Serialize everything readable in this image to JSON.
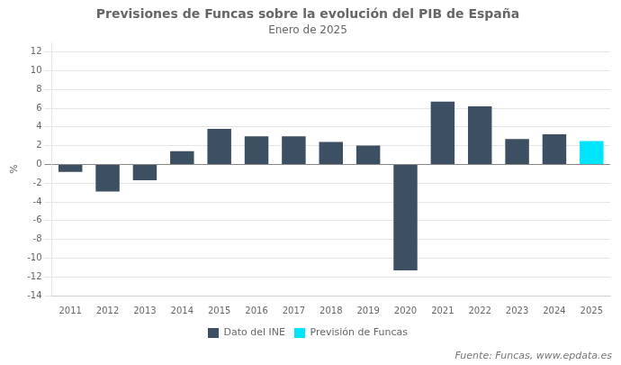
{
  "chart_data": {
    "type": "bar",
    "title": "Previsiones de Funcas sobre la evolución del PIB de España",
    "subtitle": "Enero de 2025",
    "ylabel": "%",
    "annotation": "Fuente: Funcas, www.epdata.es",
    "categories": [
      "2011",
      "2012",
      "2013",
      "2014",
      "2015",
      "2016",
      "2017",
      "2018",
      "2019",
      "2020",
      "2021",
      "2022",
      "2023",
      "2024",
      "2025"
    ],
    "series": [
      {
        "name": "Dato del INE",
        "color": "#3d4f63",
        "values": [
          -0.8,
          -2.9,
          -1.7,
          1.4,
          3.8,
          3.0,
          3.0,
          2.4,
          2.0,
          -11.3,
          6.7,
          6.2,
          2.7,
          3.2,
          null
        ]
      },
      {
        "name": "Previsión de Funcas",
        "color": "#00e5ff",
        "values": [
          null,
          null,
          null,
          null,
          null,
          null,
          null,
          null,
          null,
          null,
          null,
          null,
          null,
          null,
          2.5
        ]
      }
    ],
    "ylim": [
      -14,
      13
    ],
    "yticks": [
      -14,
      -12,
      -10,
      -8,
      -6,
      -4,
      -2,
      0,
      2,
      4,
      6,
      8,
      10,
      12
    ],
    "grid": true,
    "legend": "bottom"
  }
}
